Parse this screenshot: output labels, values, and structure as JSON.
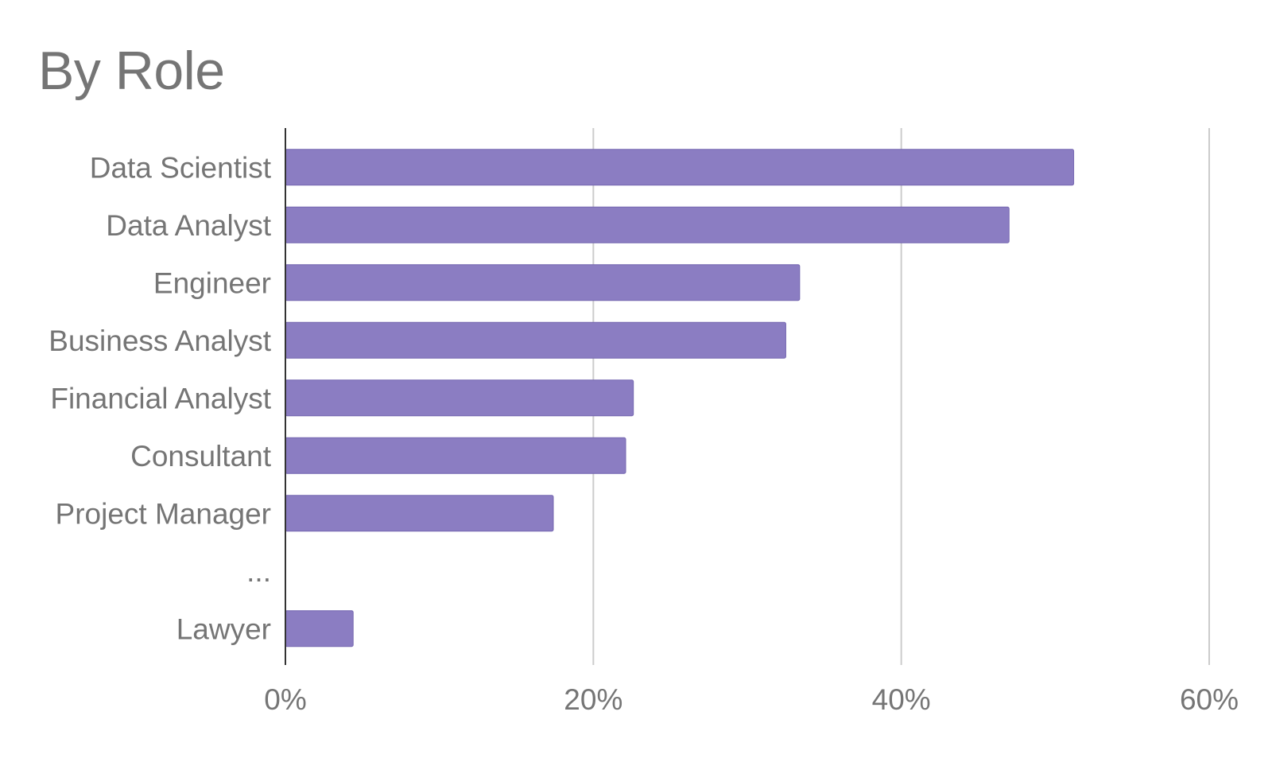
{
  "chart_data": {
    "type": "bar",
    "orientation": "horizontal",
    "title": "By Role",
    "categories": [
      "Data Scientist",
      "Data Analyst",
      "Engineer",
      "Business Analyst",
      "Financial Analyst",
      "Consultant",
      "Project Manager",
      "...",
      "Lawyer"
    ],
    "values": [
      51.2,
      47.0,
      33.4,
      32.5,
      22.6,
      22.1,
      17.4,
      null,
      4.4
    ],
    "value_unit": "%",
    "xlim": [
      0,
      60
    ],
    "x_ticks": [
      "0%",
      "20%",
      "40%",
      "60%"
    ],
    "x_tick_values": [
      0,
      20,
      40,
      60
    ],
    "xlabel": "",
    "ylabel": "",
    "grid": true,
    "legend": "none",
    "bar_color": "#8b7dc2",
    "bar_edge_color": "#7466b0"
  }
}
